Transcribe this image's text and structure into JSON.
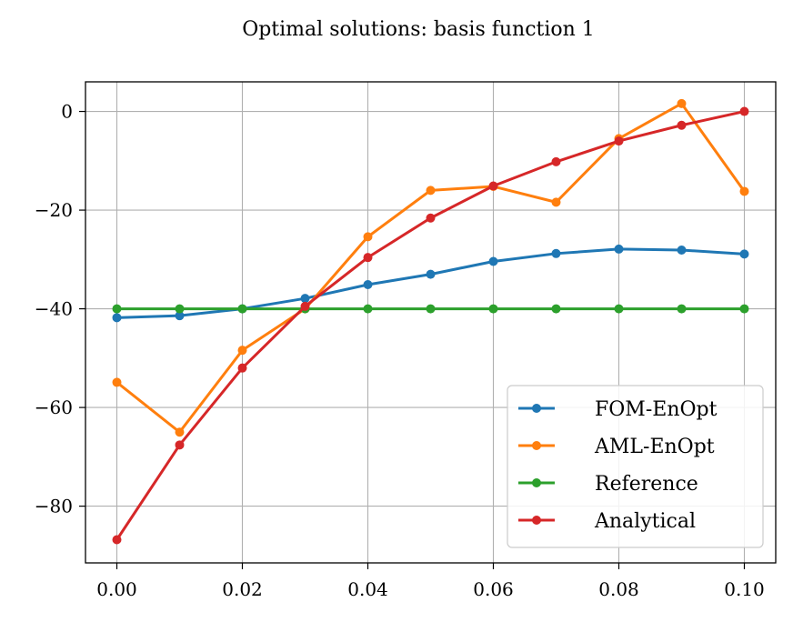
{
  "chart_data": {
    "type": "line",
    "title": "Optimal solutions: basis function 1",
    "xlabel": "",
    "ylabel": "",
    "xlim": [
      -0.005,
      0.105
    ],
    "ylim": [
      -91.5,
      6
    ],
    "xticks": [
      0.0,
      0.02,
      0.04,
      0.06,
      0.08,
      0.1
    ],
    "xtick_labels": [
      "0.00",
      "0.02",
      "0.04",
      "0.06",
      "0.08",
      "0.10"
    ],
    "yticks": [
      0,
      -20,
      -40,
      -60,
      -80
    ],
    "ytick_labels": [
      "0",
      "−20",
      "−40",
      "−60",
      "−80"
    ],
    "grid": true,
    "legend_position": "lower-right",
    "x": [
      0.0,
      0.01,
      0.02,
      0.03,
      0.04,
      0.05,
      0.06,
      0.07,
      0.08,
      0.09,
      0.1
    ],
    "series": [
      {
        "name": "FOM-EnOpt",
        "color": "#1f77b4",
        "values": [
          -41.8,
          -41.4,
          -40.0,
          -37.9,
          -35.1,
          -33.0,
          -30.4,
          -28.8,
          -27.9,
          -28.1,
          -28.9
        ]
      },
      {
        "name": "AML-EnOpt",
        "color": "#ff7f0e",
        "values": [
          -54.9,
          -65.0,
          -48.4,
          -40.0,
          -25.4,
          -16.0,
          -15.2,
          -18.4,
          -5.5,
          1.6,
          -16.2
        ]
      },
      {
        "name": "Reference",
        "color": "#2ca02c",
        "values": [
          -40.0,
          -40.0,
          -40.0,
          -40.0,
          -40.0,
          -40.0,
          -40.0,
          -40.0,
          -40.0,
          -40.0,
          -40.0
        ]
      },
      {
        "name": "Analytical",
        "color": "#d62728",
        "values": [
          -86.8,
          -67.6,
          -52.0,
          -39.5,
          -29.6,
          -21.6,
          -15.1,
          -10.2,
          -6.0,
          -2.8,
          0.0
        ]
      }
    ]
  }
}
